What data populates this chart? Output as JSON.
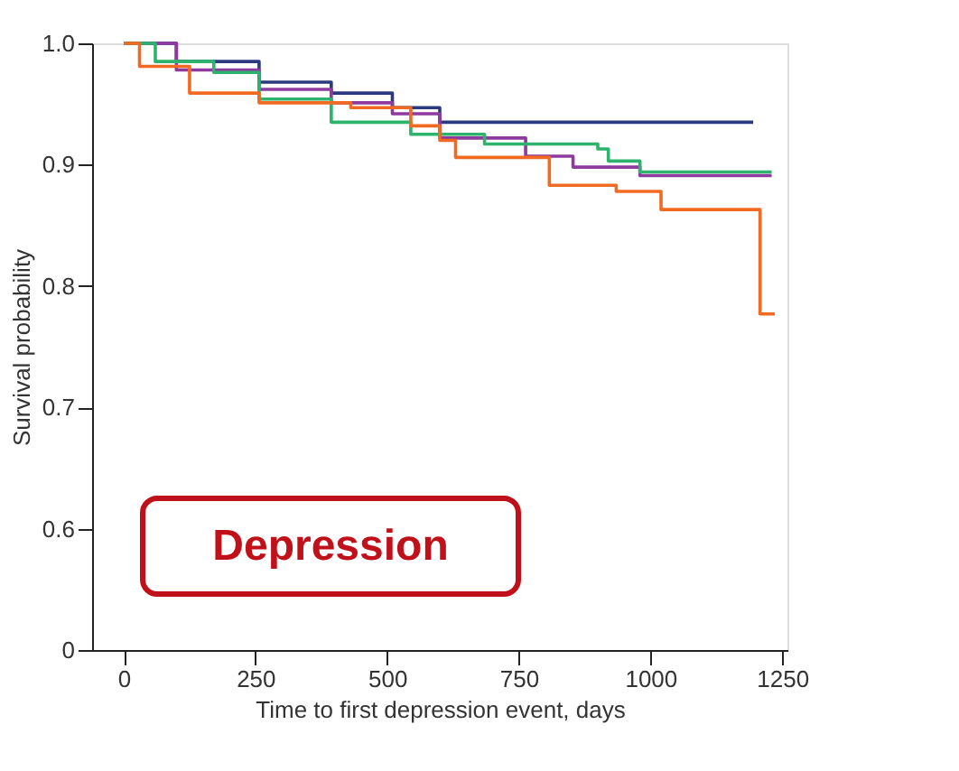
{
  "chart_data": {
    "type": "step",
    "xlabel": "Time to first depression event, days",
    "ylabel": "Survival probability",
    "annotations": [
      "Depression"
    ],
    "xlim": [
      -60,
      1260
    ],
    "xticks": [
      0,
      250,
      500,
      750,
      1000,
      1250
    ],
    "ylim": [
      0.5,
      1.0
    ],
    "yticks": [
      {
        "value": 0.5,
        "label": "0"
      },
      0.6,
      0.7,
      0.8,
      0.9,
      {
        "value": 1.0,
        "label": "1.0"
      }
    ],
    "grid": false,
    "legend": false,
    "marker": "none",
    "line_style": "solid",
    "series": [
      {
        "color": "#2b3a80",
        "x": [
          0,
          100,
          257,
          394,
          510,
          600,
          1195
        ],
        "values": [
          1.0,
          0.985,
          0.968,
          0.959,
          0.947,
          0.935,
          0.935
        ]
      },
      {
        "color": "#8e3a9e",
        "x": [
          0,
          100,
          257,
          394,
          510,
          600,
          763,
          853,
          980,
          1230
        ],
        "values": [
          1.0,
          0.978,
          0.962,
          0.951,
          0.942,
          0.922,
          0.907,
          0.898,
          0.891,
          0.891
        ]
      },
      {
        "color": "#2db36b",
        "x": [
          0,
          60,
          171,
          257,
          394,
          545,
          685,
          900,
          920,
          980,
          1230
        ],
        "values": [
          1.0,
          0.985,
          0.976,
          0.954,
          0.935,
          0.925,
          0.917,
          0.913,
          0.903,
          0.894,
          0.894
        ]
      },
      {
        "color": "#f26a21",
        "x": [
          0,
          30,
          125,
          257,
          431,
          545,
          600,
          630,
          808,
          935,
          1020,
          1208,
          1236
        ],
        "values": [
          1.0,
          0.981,
          0.959,
          0.951,
          0.947,
          0.932,
          0.92,
          0.906,
          0.883,
          0.878,
          0.863,
          0.777,
          0.777
        ]
      }
    ]
  }
}
